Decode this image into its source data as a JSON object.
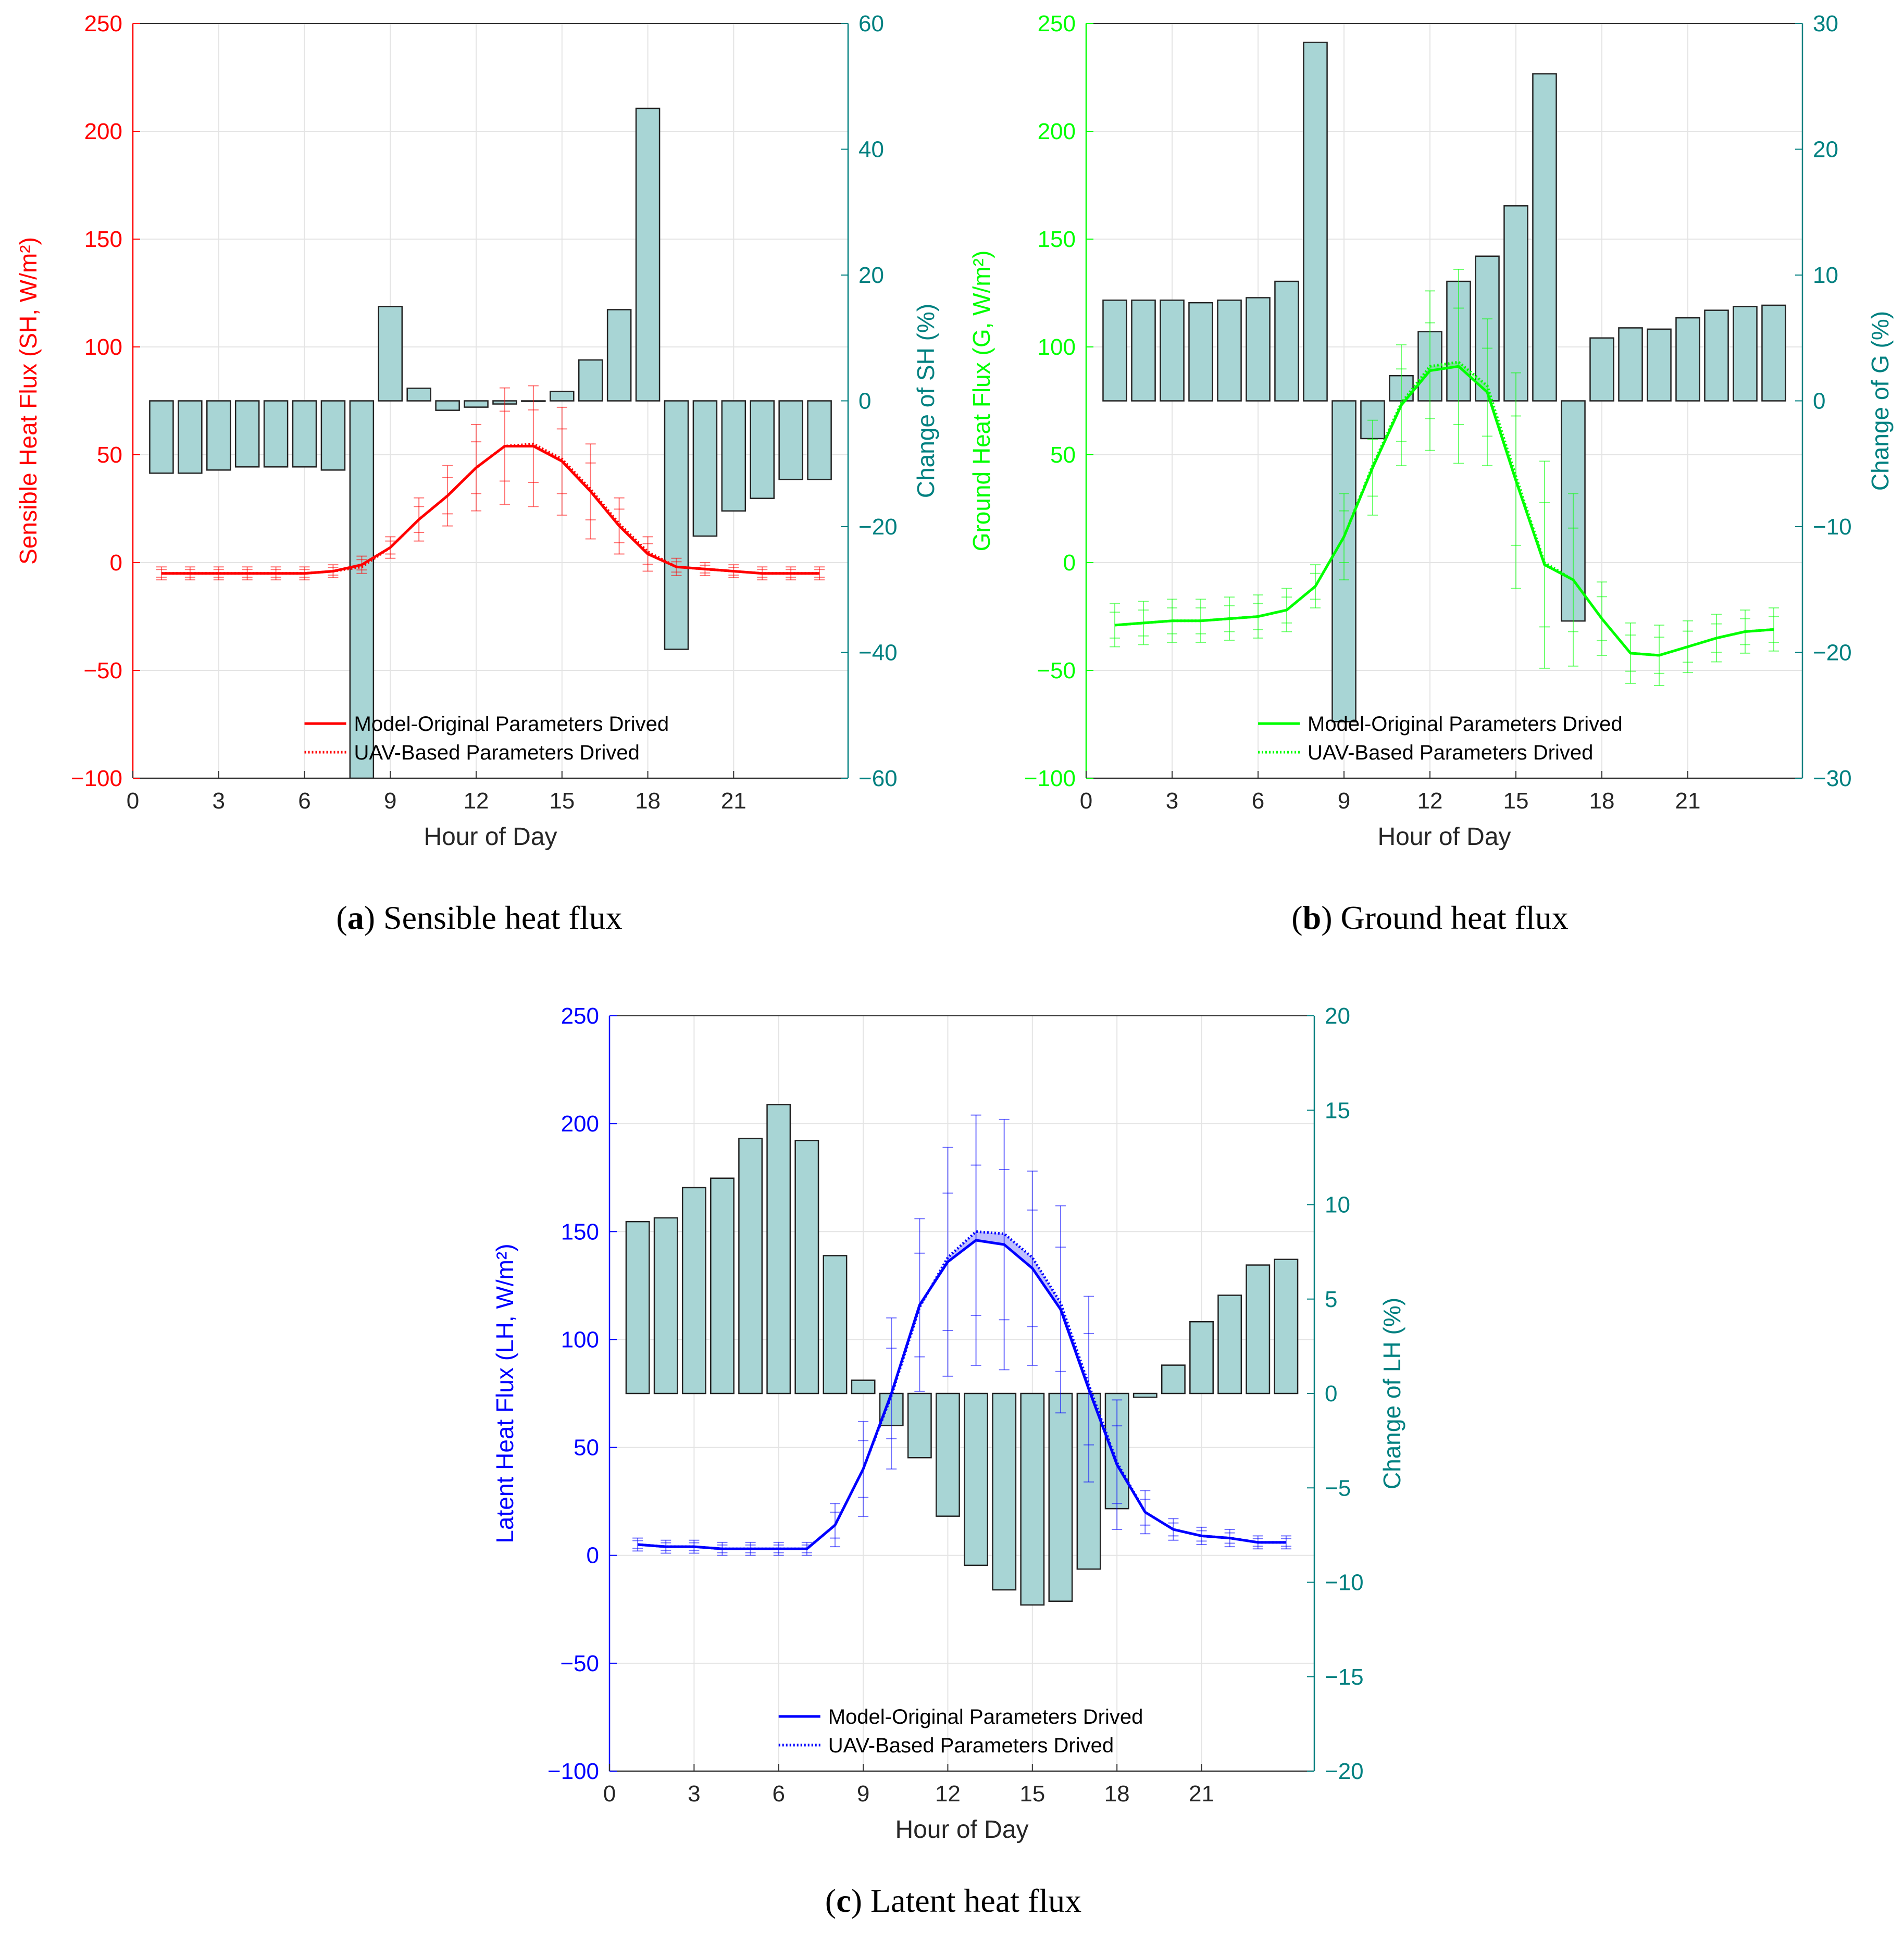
{
  "chart_data": [
    {
      "id": "a",
      "type": "line+bar",
      "caption_letter": "a",
      "caption_text": "Sensible heat flux",
      "xlabel": "Hour of Day",
      "xlim": [
        0,
        25
      ],
      "xticks": [
        0,
        3,
        6,
        9,
        12,
        15,
        18,
        21
      ],
      "ylabel_left": "Sensible Heat Flux (SH, W/m²)",
      "ylim_left": [
        -100,
        250
      ],
      "yticks_left": [
        -100,
        -50,
        0,
        50,
        100,
        150,
        200,
        250
      ],
      "ylabel_right": "Change of SH (%)",
      "ylim_right": [
        -60,
        60
      ],
      "yticks_right": [
        -60,
        -40,
        -20,
        0,
        20,
        40,
        60
      ],
      "line_color": "#ff0000",
      "legend": [
        "Model-Original Parameters Drived",
        "UAV-Based Parameters Drived"
      ],
      "legend_position": "bottom-center",
      "grid": true,
      "hours": [
        1,
        2,
        3,
        4,
        5,
        6,
        7,
        8,
        9,
        10,
        11,
        12,
        13,
        14,
        15,
        16,
        17,
        18,
        19,
        20,
        21,
        22,
        23,
        24
      ],
      "series": [
        {
          "name": "Model-Original Parameters Drived",
          "style": "solid",
          "values": [
            -5,
            -5,
            -5,
            -5,
            -5,
            -5,
            -4,
            -1,
            7,
            20,
            31,
            44,
            54,
            54,
            47,
            33,
            17,
            4,
            -2,
            -3,
            -4,
            -5,
            -5,
            -5
          ],
          "err": [
            3,
            3,
            3,
            3,
            3,
            3,
            3,
            4,
            5,
            10,
            14,
            20,
            27,
            28,
            25,
            22,
            13,
            8,
            4,
            3,
            3,
            3,
            3,
            3
          ]
        },
        {
          "name": "UAV-Based Parameters Drived",
          "style": "dotted",
          "values": [
            -5,
            -5,
            -5,
            -5,
            -5,
            -5,
            -4,
            -2,
            7,
            20,
            31,
            44,
            54,
            55,
            48,
            34,
            18,
            5,
            -2,
            -3,
            -4,
            -5,
            -5,
            -5
          ]
        }
      ],
      "change_pct": [
        -11.5,
        -11.5,
        -11,
        -10.5,
        -10.5,
        -10.5,
        -11,
        -60,
        15,
        2,
        -1.5,
        -1,
        -0.5,
        0,
        1.5,
        6.5,
        14.5,
        46.5,
        -39.5,
        -21.5,
        -17.5,
        -15.5,
        -12.5,
        -12.5
      ]
    },
    {
      "id": "b",
      "type": "line+bar",
      "caption_letter": "b",
      "caption_text": "Ground heat flux",
      "xlabel": "Hour of Day",
      "xlim": [
        0,
        25
      ],
      "xticks": [
        0,
        3,
        6,
        9,
        12,
        15,
        18,
        21
      ],
      "ylabel_left": "Ground Heat Flux (G, W/m²)",
      "ylim_left": [
        -100,
        250
      ],
      "yticks_left": [
        -100,
        -50,
        0,
        50,
        100,
        150,
        200,
        250
      ],
      "ylabel_right": "Change of G (%)",
      "ylim_right": [
        -30,
        30
      ],
      "yticks_right": [
        -30,
        -20,
        -10,
        0,
        10,
        20,
        30
      ],
      "line_color": "#00ff00",
      "legend": [
        "Model-Original Parameters Drived",
        "UAV-Based Parameters Drived"
      ],
      "legend_position": "bottom-center",
      "grid": true,
      "hours": [
        1,
        2,
        3,
        4,
        5,
        6,
        7,
        8,
        9,
        10,
        11,
        12,
        13,
        14,
        15,
        16,
        17,
        18,
        19,
        20,
        21,
        22,
        23,
        24
      ],
      "series": [
        {
          "name": "Model-Original Parameters Drived",
          "style": "solid",
          "values": [
            -29,
            -28,
            -27,
            -27,
            -26,
            -25,
            -22,
            -11,
            12,
            44,
            73,
            89,
            91,
            79,
            38,
            -1,
            -8,
            -26,
            -42,
            -43,
            -39,
            -35,
            -32,
            -31
          ],
          "err": [
            10,
            10,
            10,
            10,
            10,
            10,
            10,
            10,
            20,
            22,
            28,
            37,
            45,
            34,
            50,
            48,
            40,
            17,
            14,
            14,
            12,
            11,
            10,
            10
          ]
        },
        {
          "name": "UAV-Based Parameters Drived",
          "style": "dotted",
          "values": [
            -29,
            -28,
            -27,
            -27,
            -26,
            -25,
            -22,
            -11,
            12,
            45,
            74,
            91,
            93,
            82,
            40,
            0,
            -8,
            -26,
            -42,
            -43,
            -39,
            -35,
            -32,
            -31
          ]
        }
      ],
      "change_pct": [
        8,
        8,
        8,
        7.8,
        8,
        8.2,
        9.5,
        28.5,
        -25.5,
        -3,
        2,
        5.5,
        9.5,
        11.5,
        15.5,
        26,
        -17.5,
        5,
        5.8,
        5.7,
        6.6,
        7.2,
        7.5,
        7.6
      ]
    },
    {
      "id": "c",
      "type": "line+bar",
      "caption_letter": "c",
      "caption_text": "Latent heat flux",
      "xlabel": "Hour of Day",
      "xlim": [
        0,
        25
      ],
      "xticks": [
        0,
        3,
        6,
        9,
        12,
        15,
        18,
        21
      ],
      "ylabel_left": "Latent Heat Flux (LH, W/m²)",
      "ylim_left": [
        -100,
        250
      ],
      "yticks_left": [
        -100,
        -50,
        0,
        50,
        100,
        150,
        200,
        250
      ],
      "ylabel_right": "Change of LH (%)",
      "ylim_right": [
        -20,
        20
      ],
      "yticks_right": [
        -20,
        -15,
        -10,
        -5,
        0,
        5,
        10,
        15,
        20
      ],
      "line_color": "#0000ff",
      "legend": [
        "Model-Original Parameters Drived",
        "UAV-Based Parameters Drived"
      ],
      "legend_position": "bottom-center",
      "grid": true,
      "hours": [
        1,
        2,
        3,
        4,
        5,
        6,
        7,
        8,
        9,
        10,
        11,
        12,
        13,
        14,
        15,
        16,
        17,
        18,
        19,
        20,
        21,
        22,
        23,
        24
      ],
      "series": [
        {
          "name": "Model-Original Parameters Drived",
          "style": "solid",
          "values": [
            5,
            4,
            4,
            3,
            3,
            3,
            3,
            14,
            40,
            75,
            116,
            136,
            146,
            144,
            133,
            114,
            77,
            42,
            20,
            12,
            9,
            8,
            6,
            6
          ],
          "err": [
            3,
            3,
            3,
            3,
            3,
            3,
            3,
            10,
            22,
            35,
            40,
            53,
            58,
            58,
            45,
            48,
            43,
            30,
            10,
            5,
            4,
            4,
            3,
            3
          ]
        },
        {
          "name": "UAV-Based Parameters Drived",
          "style": "dotted",
          "values": [
            5,
            4,
            4,
            3,
            3,
            3,
            3,
            14,
            40,
            74,
            115,
            138,
            150,
            149,
            138,
            117,
            79,
            43,
            20,
            12,
            9,
            8,
            6,
            6
          ]
        }
      ],
      "change_pct": [
        9.1,
        9.3,
        10.9,
        11.4,
        13.5,
        15.3,
        13.4,
        7.3,
        0.7,
        -1.7,
        -3.4,
        -6.5,
        -9.1,
        -10.4,
        -11.2,
        -11,
        -9.3,
        -6.1,
        -0.2,
        1.5,
        3.8,
        5.2,
        6.8,
        7.1
      ]
    }
  ]
}
